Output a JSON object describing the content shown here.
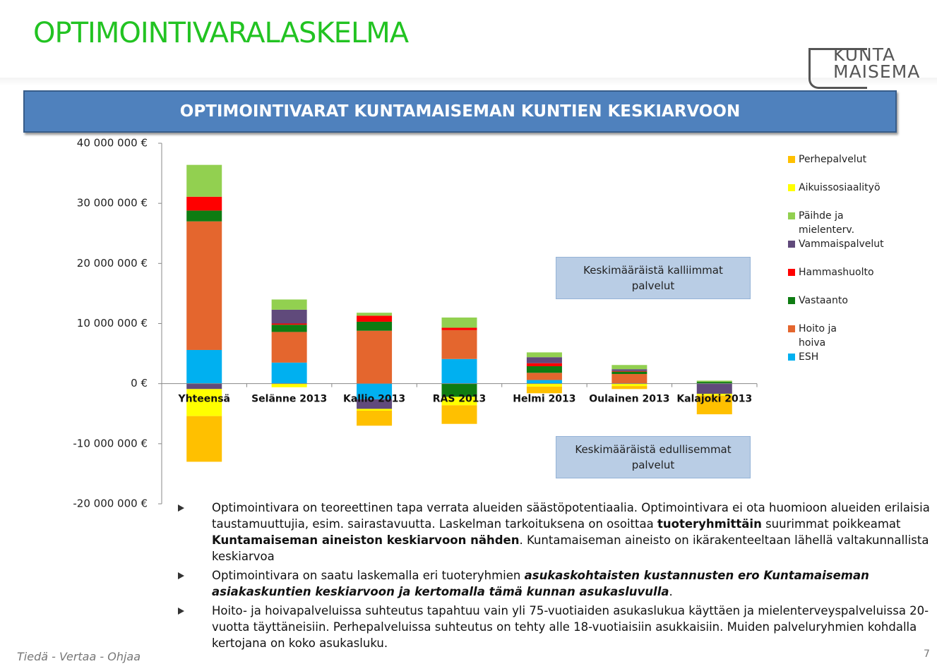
{
  "header": {
    "title": "OPTIMOINTIVARALASKELMA",
    "logo_top": "KUNTA",
    "logo_bottom": "MAISEMA"
  },
  "chart_data": {
    "type": "bar",
    "stacked": true,
    "title": "OPTIMOINTIVARAT KUNTAMAISEMAN KUNTIEN KESKIARVOON",
    "categories": [
      "Yhteensä",
      "Selänne 2013",
      "Kallio 2013",
      "RAS 2013",
      "Helmi 2013",
      "Oulainen 2013",
      "Kalajoki 2013"
    ],
    "series": [
      {
        "name": "ESH",
        "color": "#00b0f0",
        "values": [
          5600000,
          3500000,
          -2600000,
          4100000,
          600000,
          0,
          0
        ]
      },
      {
        "name": "Hoito ja hoiva",
        "color": "#e4662e",
        "values": [
          21400000,
          5100000,
          8800000,
          4800000,
          1200000,
          1600000,
          0
        ]
      },
      {
        "name": "Vastaanto",
        "color": "#0e7c12",
        "values": [
          1800000,
          1200000,
          1500000,
          -2200000,
          1100000,
          400000,
          300000
        ]
      },
      {
        "name": "Hammashuolto",
        "color": "#ff0000",
        "values": [
          2300000,
          200000,
          1000000,
          400000,
          500000,
          100000,
          0
        ]
      },
      {
        "name": "Vammaispalvelut",
        "color": "#604a7b",
        "values": [
          -900000,
          2300000,
          -1600000,
          0,
          1000000,
          300000,
          -1700000
        ]
      },
      {
        "name": "Päihde ja mielenterv.",
        "color": "#92d050",
        "values": [
          5300000,
          1700000,
          500000,
          1700000,
          800000,
          700000,
          200000
        ]
      },
      {
        "name": "Aikuissosiaalityö",
        "color": "#ffff00",
        "values": [
          -4500000,
          -600000,
          -300000,
          -1400000,
          -500000,
          -400000,
          -300000
        ]
      },
      {
        "name": "Perhepalvelut",
        "color": "#ffc000",
        "values": [
          -7600000,
          0,
          -2500000,
          -3100000,
          -1100000,
          -500000,
          -3100000
        ]
      }
    ],
    "ylim": [
      -20000000,
      40000000
    ],
    "yticks": [
      {
        "value": -20000000,
        "label": "-20 000 000 €"
      },
      {
        "value": -10000000,
        "label": "-10 000 000 €"
      },
      {
        "value": 0,
        "label": "0 €"
      },
      {
        "value": 10000000,
        "label": "10 000 000 €"
      },
      {
        "value": 20000000,
        "label": "20 000 000 €"
      },
      {
        "value": 30000000,
        "label": "30 000 000 €"
      },
      {
        "value": 40000000,
        "label": "40 000 000 €"
      }
    ],
    "legend": "right",
    "annotations": [
      "Keskimääräistä kalliimmat palvelut",
      "Keskimääräistä edullisemmat palvelut"
    ]
  },
  "bullets": [
    [
      {
        "text": "Optimointivara on teoreettinen tapa verrata alueiden säästöpotentiaalia. Optimointivara ei ota huomioon alueiden erilaisia taustamuuttujia, esim. sairastavuutta. Laskelman tarkoituksena on osoittaa ",
        "bold": false,
        "italic": false
      },
      {
        "text": "tuoteryhmittäin",
        "bold": true,
        "italic": false
      },
      {
        "text": " suurimmat poikkeamat ",
        "bold": false,
        "italic": false
      },
      {
        "text": "Kuntamaiseman aineiston keskiarvoon nähden",
        "bold": true,
        "italic": false
      },
      {
        "text": ". Kuntamaiseman aineisto on ikärakenteeltaan lähellä valtakunnallista keskiarvoa",
        "bold": false,
        "italic": false
      }
    ],
    [
      {
        "text": "Optimointivara on saatu laskemalla eri tuoteryhmien ",
        "bold": false,
        "italic": false
      },
      {
        "text": "asukaskohtaisten kustannusten ero Kuntamaiseman asiakaskuntien keskiarvoon ja kertomalla tämä kunnan asukasluvulla",
        "bold": true,
        "italic": true
      },
      {
        "text": ".",
        "bold": false,
        "italic": false
      }
    ],
    [
      {
        "text": "Hoito- ja hoivapalveluissa suhteutus tapahtuu vain yli 75-vuotiaiden asukaslukua käyttäen ja mielenterveyspalveluissa 20-vuotta täyttäneisiin. Perhepalveluissa suhteutus on tehty alle 18-vuotiaisiin asukkaisiin. Muiden palveluryhmien kohdalla kertojana on koko asukasluku.",
        "bold": false,
        "italic": false
      }
    ]
  ],
  "footer": {
    "slogan": "Tiedä - Vertaa - Ohjaa",
    "page": "7"
  }
}
